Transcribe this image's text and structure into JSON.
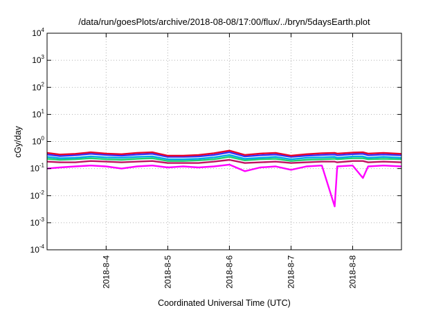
{
  "chart_data": {
    "type": "line",
    "title": "/data/run/goesPlots/archive/2018-08-08/17:00/flux/../bryn/5daysEarth.plot",
    "xlabel": "Coordinated Universal Time (UTC)",
    "ylabel": "cGy/day",
    "yscale": "log",
    "ylim": [
      0.0001,
      10000
    ],
    "xlim": [
      "2018-08-03 01:00",
      "2018-08-08 19:00"
    ],
    "grid": true,
    "y_ticks": [
      {
        "base": "10",
        "exp": "-4",
        "value": 0.0001
      },
      {
        "base": "10",
        "exp": "-3",
        "value": 0.001
      },
      {
        "base": "10",
        "exp": "-2",
        "value": 0.01
      },
      {
        "base": "10",
        "exp": "-1",
        "value": 0.1
      },
      {
        "base": "10",
        "exp": "0",
        "value": 1
      },
      {
        "base": "10",
        "exp": "1",
        "value": 10
      },
      {
        "base": "10",
        "exp": "2",
        "value": 100
      },
      {
        "base": "10",
        "exp": "3",
        "value": 1000
      },
      {
        "base": "10",
        "exp": "4",
        "value": 10000
      }
    ],
    "x_ticks": [
      {
        "label": "2018-8-4",
        "value": "2018-08-04"
      },
      {
        "label": "2018-8-5",
        "value": "2018-08-05"
      },
      {
        "label": "2018-8-6",
        "value": "2018-08-06"
      },
      {
        "label": "2018-8-7",
        "value": "2018-08-07"
      },
      {
        "label": "2018-8-8",
        "value": "2018-08-08"
      }
    ],
    "x": [
      "2018-08-03 01:00",
      "2018-08-03 06:00",
      "2018-08-03 12:00",
      "2018-08-03 18:00",
      "2018-08-04 00:00",
      "2018-08-04 06:00",
      "2018-08-04 12:00",
      "2018-08-04 18:00",
      "2018-08-05 00:00",
      "2018-08-05 06:00",
      "2018-08-05 12:00",
      "2018-08-05 18:00",
      "2018-08-06 00:00",
      "2018-08-06 06:00",
      "2018-08-06 12:00",
      "2018-08-06 18:00",
      "2018-08-07 00:00",
      "2018-08-07 06:00",
      "2018-08-07 12:00",
      "2018-08-07 17:00",
      "2018-08-07 18:00",
      "2018-08-08 00:00",
      "2018-08-08 04:00",
      "2018-08-08 06:00",
      "2018-08-08 12:00",
      "2018-08-08 19:00"
    ],
    "series": [
      {
        "color": "#e8002a",
        "values": [
          0.38,
          0.33,
          0.35,
          0.4,
          0.36,
          0.34,
          0.38,
          0.4,
          0.3,
          0.3,
          0.32,
          0.37,
          0.46,
          0.32,
          0.36,
          0.38,
          0.3,
          0.34,
          0.37,
          0.38,
          0.36,
          0.39,
          0.4,
          0.36,
          0.38,
          0.35
        ]
      },
      {
        "color": "#3030ff",
        "values": [
          0.33,
          0.29,
          0.31,
          0.35,
          0.32,
          0.3,
          0.33,
          0.35,
          0.27,
          0.27,
          0.28,
          0.32,
          0.4,
          0.28,
          0.31,
          0.33,
          0.27,
          0.3,
          0.32,
          0.33,
          0.31,
          0.34,
          0.35,
          0.31,
          0.33,
          0.31
        ]
      },
      {
        "color": "#00a8e8",
        "values": [
          0.27,
          0.24,
          0.25,
          0.28,
          0.26,
          0.25,
          0.27,
          0.28,
          0.22,
          0.22,
          0.23,
          0.26,
          0.32,
          0.23,
          0.25,
          0.27,
          0.22,
          0.25,
          0.26,
          0.27,
          0.25,
          0.28,
          0.28,
          0.25,
          0.27,
          0.25
        ]
      },
      {
        "color": "#20d070",
        "values": [
          0.23,
          0.21,
          0.22,
          0.24,
          0.22,
          0.21,
          0.23,
          0.24,
          0.19,
          0.19,
          0.2,
          0.22,
          0.27,
          0.2,
          0.22,
          0.23,
          0.19,
          0.21,
          0.22,
          0.23,
          0.22,
          0.24,
          0.24,
          0.22,
          0.23,
          0.22
        ]
      },
      {
        "color": "#c01060",
        "values": [
          0.18,
          0.17,
          0.17,
          0.19,
          0.18,
          0.17,
          0.18,
          0.19,
          0.16,
          0.16,
          0.16,
          0.18,
          0.21,
          0.16,
          0.17,
          0.18,
          0.16,
          0.17,
          0.18,
          0.18,
          0.17,
          0.19,
          0.19,
          0.17,
          0.18,
          0.17
        ]
      },
      {
        "color": "#ff00ff",
        "values": [
          0.1,
          0.11,
          0.12,
          0.13,
          0.12,
          0.1,
          0.12,
          0.13,
          0.11,
          0.12,
          0.11,
          0.12,
          0.14,
          0.08,
          0.11,
          0.12,
          0.09,
          0.12,
          0.13,
          0.004,
          0.12,
          0.13,
          0.045,
          0.12,
          0.13,
          0.12
        ]
      }
    ]
  }
}
